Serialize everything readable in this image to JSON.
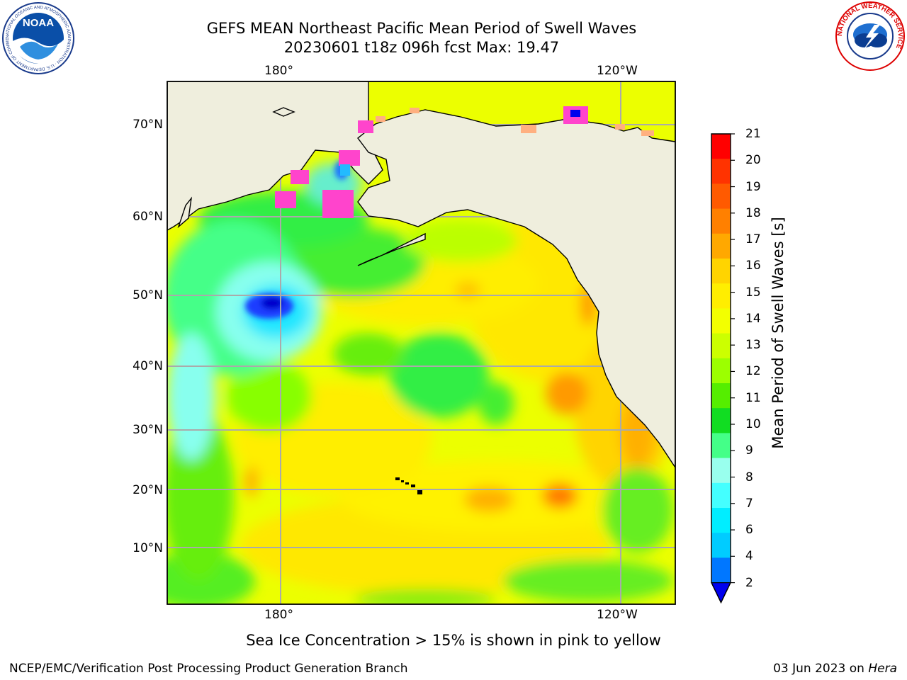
{
  "title": {
    "line1": "GEFS MEAN Northeast Pacific Mean Period of Swell Waves",
    "line2": "20230601 t18z 096h fcst   Max: 19.47"
  },
  "logos": {
    "left": "NOAA",
    "right": "NATIONAL WEATHER SERVICE"
  },
  "axes": {
    "top_lon": [
      "180°",
      "120°W"
    ],
    "bottom_lon": [
      "180°",
      "120°W"
    ],
    "lat": [
      "70°N",
      "60°N",
      "50°N",
      "40°N",
      "30°N",
      "20°N",
      "10°N"
    ]
  },
  "colorbar": {
    "label": "Mean Period of Swell Waves [s]",
    "ticks": [
      "21",
      "20",
      "19",
      "18",
      "17",
      "16",
      "15",
      "14",
      "13",
      "12",
      "11",
      "10",
      "9",
      "8",
      "7",
      "6",
      "4",
      "2"
    ],
    "colors": [
      "#ff0000",
      "#ff3300",
      "#ff5a00",
      "#ff8000",
      "#ffa800",
      "#ffd400",
      "#ffee00",
      "#f3ff00",
      "#ccff00",
      "#9cff00",
      "#55ee00",
      "#11dd22",
      "#44ff88",
      "#99ffee",
      "#44ffff",
      "#00eeff",
      "#00ccff",
      "#0077ff"
    ],
    "min_arrow_color": "#0000ee"
  },
  "footer": {
    "ice_note": "Sea Ice Concentration > 15% is shown in pink to yellow",
    "credit": "NCEP/EMC/Verification Post Processing Product Generation Branch",
    "date": "03 Jun 2023 on ",
    "machine": "Hera"
  },
  "colors": {
    "land": "#efeedd",
    "grid": "#aaaaaa",
    "sea_ice": "#ff44cc"
  }
}
